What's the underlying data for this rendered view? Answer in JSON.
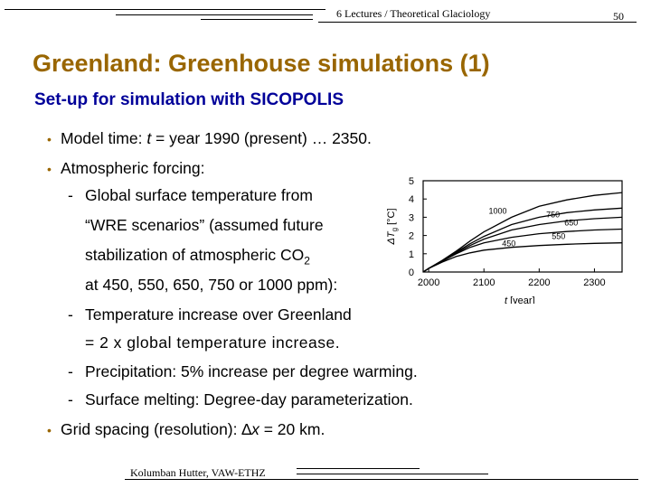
{
  "header": {
    "course": "6 Lectures / Theoretical Glaciology",
    "page_number": "50"
  },
  "title": "Greenland: Greenhouse simulations (1)",
  "title_color": "#996600",
  "subtitle": "Set-up for simulation with SICOPOLIS",
  "subtitle_color": "#000099",
  "bullet_color": "#996600",
  "body": {
    "b1": {
      "pre": "Model time: ",
      "var": "t",
      "post": " = year 1990 (present) … 2350."
    },
    "b2": "Atmospheric forcing:",
    "s1": {
      "l1": "Global surface temperature from",
      "l2": "“WRE scenarios” (assumed future",
      "l3_pre": "stabilization of atmospheric CO",
      "l3_sub": "2",
      "l4": "at 450, 550, 650, 750 or 1000 ppm):"
    },
    "s2": {
      "l1": "Temperature increase over Greenland",
      "l2": "= 2 x global temperature increase."
    },
    "s3": "Precipitation: 5% increase per degree warming.",
    "s4": "Surface melting: Degree-day parameterization.",
    "b3": {
      "pre": "Grid spacing (resolution): ",
      "sym": "∆",
      "var": "x",
      "post": " = 20 km."
    }
  },
  "footer": {
    "author": "Kolumban Hutter, VAW-ETHZ"
  },
  "chart_data": {
    "type": "line",
    "xlabel_var": "t",
    "xlabel_unit": " [year]",
    "ylabel_var": "ΔT",
    "ylabel_sub": "g",
    "ylabel_unit": " [°C]",
    "xlim": [
      1990,
      2350
    ],
    "ylim": [
      0,
      5
    ],
    "xticks": [
      2000,
      2100,
      2200,
      2300
    ],
    "yticks": [
      0,
      1,
      2,
      3,
      4,
      5
    ],
    "series": [
      {
        "name": "450",
        "x": [
          1990,
          2000,
          2025,
          2050,
          2075,
          2100,
          2150,
          2200,
          2250,
          2300,
          2350
        ],
        "y": [
          0,
          0.2,
          0.55,
          0.85,
          1.05,
          1.2,
          1.35,
          1.45,
          1.52,
          1.57,
          1.6
        ]
      },
      {
        "name": "550",
        "x": [
          1990,
          2000,
          2025,
          2050,
          2075,
          2100,
          2150,
          2200,
          2250,
          2300,
          2350
        ],
        "y": [
          0,
          0.2,
          0.6,
          1.0,
          1.35,
          1.6,
          1.9,
          2.1,
          2.22,
          2.3,
          2.35
        ]
      },
      {
        "name": "650",
        "x": [
          1990,
          2000,
          2025,
          2050,
          2075,
          2100,
          2150,
          2200,
          2250,
          2300,
          2350
        ],
        "y": [
          0,
          0.2,
          0.62,
          1.05,
          1.45,
          1.8,
          2.3,
          2.6,
          2.8,
          2.92,
          3.0
        ]
      },
      {
        "name": "750",
        "x": [
          1990,
          2000,
          2025,
          2050,
          2075,
          2100,
          2150,
          2200,
          2250,
          2300,
          2350
        ],
        "y": [
          0,
          0.2,
          0.63,
          1.1,
          1.55,
          1.95,
          2.6,
          3.0,
          3.25,
          3.4,
          3.5
        ]
      },
      {
        "name": "1000",
        "x": [
          1990,
          2000,
          2025,
          2050,
          2075,
          2100,
          2150,
          2200,
          2250,
          2300,
          2350
        ],
        "y": [
          0,
          0.2,
          0.65,
          1.15,
          1.7,
          2.2,
          3.0,
          3.6,
          3.95,
          4.2,
          4.35
        ]
      }
    ]
  }
}
